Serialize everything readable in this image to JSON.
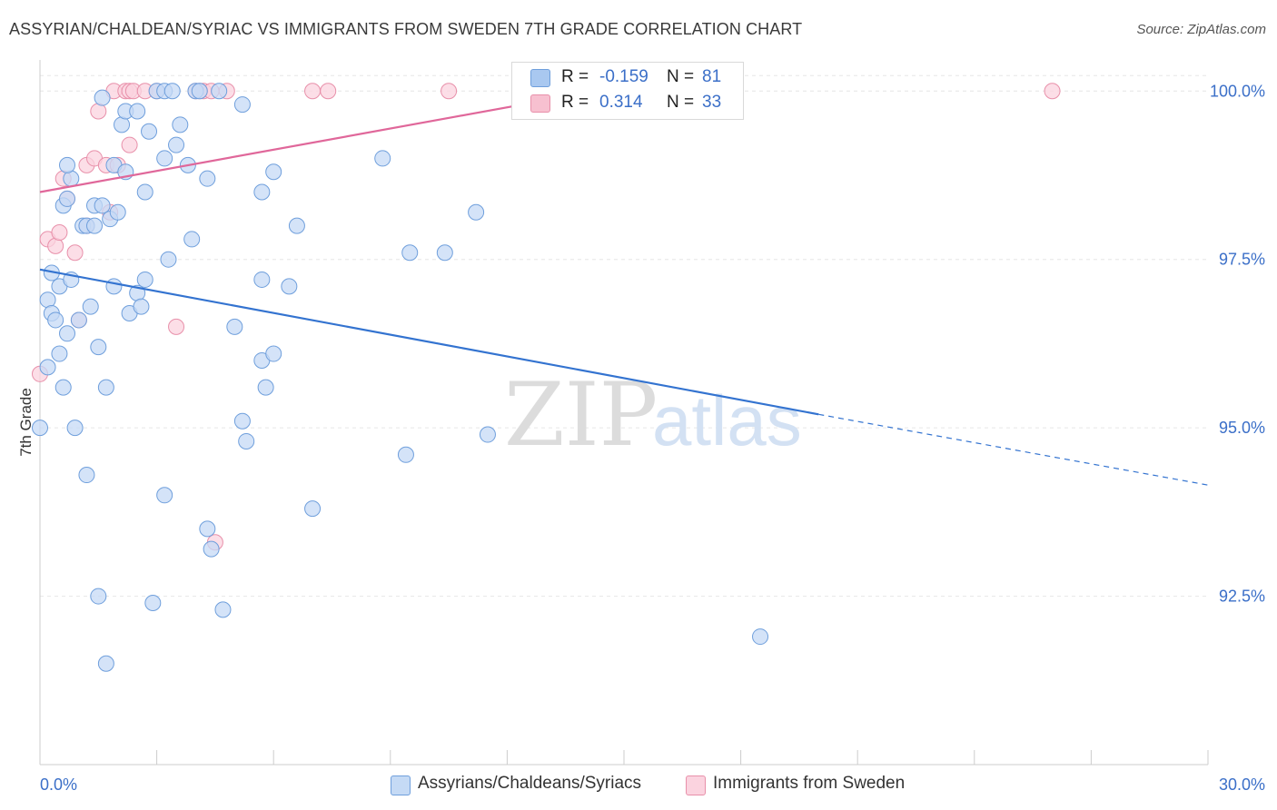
{
  "title": "ASSYRIAN/CHALDEAN/SYRIAC VS IMMIGRANTS FROM SWEDEN 7TH GRADE CORRELATION CHART",
  "source": "Source: ZipAtlas.com",
  "watermark": {
    "zip": "ZIP",
    "atlas": "atlas"
  },
  "legend": {
    "rows": [
      {
        "r_label": "R =",
        "r_value": "-0.159",
        "n_label": "N =",
        "n_value": "81",
        "color": "#a9c8f0",
        "border": "#6f9fdc"
      },
      {
        "r_label": "R =",
        "r_value": "0.314",
        "n_label": "N =",
        "n_value": "33",
        "color": "#f7c0d0",
        "border": "#e890aa"
      }
    ]
  },
  "bottom_legend": [
    {
      "label": "Assyrians/Chaldeans/Syriacs",
      "color": "#c5daf5",
      "border": "#6f9fdc"
    },
    {
      "label": "Immigrants from Sweden",
      "color": "#fbd3df",
      "border": "#e890aa"
    }
  ],
  "chart_data": {
    "type": "scatter",
    "title": "ASSYRIAN/CHALDEAN/SYRIAC VS IMMIGRANTS FROM SWEDEN 7TH GRADE CORRELATION CHART",
    "xlabel": "",
    "ylabel": "7th Grade",
    "xlim": [
      0,
      30
    ],
    "ylim": [
      90.0,
      100.3
    ],
    "x_tick_labels": [
      "0.0%",
      "30.0%"
    ],
    "y_ticks": [
      92.5,
      95.0,
      97.5,
      100.0
    ],
    "y_tick_labels": [
      "92.5%",
      "95.0%",
      "97.5%",
      "100.0%"
    ],
    "grid": true,
    "series": [
      {
        "name": "Assyrians/Chaldeans/Syriacs",
        "color": "#6f9fdc",
        "fill": "#c5daf5",
        "points": [
          [
            0.0,
            95.0
          ],
          [
            0.2,
            96.9
          ],
          [
            0.3,
            96.7
          ],
          [
            0.5,
            97.1
          ],
          [
            0.5,
            96.1
          ],
          [
            0.6,
            95.6
          ],
          [
            0.6,
            98.3
          ],
          [
            0.7,
            98.4
          ],
          [
            0.8,
            98.7
          ],
          [
            0.7,
            98.9
          ],
          [
            0.7,
            96.4
          ],
          [
            0.8,
            97.2
          ],
          [
            0.9,
            95.0
          ],
          [
            1.0,
            96.6
          ],
          [
            1.1,
            98.0
          ],
          [
            1.2,
            98.0
          ],
          [
            1.2,
            94.3
          ],
          [
            1.3,
            96.8
          ],
          [
            1.4,
            98.3
          ],
          [
            1.5,
            96.2
          ],
          [
            1.5,
            92.5
          ],
          [
            1.6,
            98.3
          ],
          [
            1.6,
            99.9
          ],
          [
            1.7,
            95.6
          ],
          [
            1.7,
            91.5
          ],
          [
            1.8,
            98.1
          ],
          [
            1.9,
            97.1
          ],
          [
            1.9,
            98.9
          ],
          [
            2.0,
            98.2
          ],
          [
            2.1,
            99.5
          ],
          [
            2.2,
            98.8
          ],
          [
            2.2,
            99.7
          ],
          [
            2.3,
            96.7
          ],
          [
            2.5,
            97.0
          ],
          [
            2.5,
            99.7
          ],
          [
            2.6,
            96.8
          ],
          [
            2.7,
            98.5
          ],
          [
            2.7,
            97.2
          ],
          [
            2.8,
            99.4
          ],
          [
            2.9,
            92.4
          ],
          [
            3.0,
            100.0
          ],
          [
            3.2,
            100.0
          ],
          [
            3.2,
            99.0
          ],
          [
            3.2,
            94.0
          ],
          [
            3.3,
            97.5
          ],
          [
            3.4,
            100.0
          ],
          [
            3.5,
            99.2
          ],
          [
            3.6,
            99.5
          ],
          [
            3.8,
            98.9
          ],
          [
            3.9,
            97.8
          ],
          [
            4.0,
            100.0
          ],
          [
            4.1,
            100.0
          ],
          [
            4.3,
            98.7
          ],
          [
            4.3,
            93.5
          ],
          [
            4.4,
            93.2
          ],
          [
            4.6,
            100.0
          ],
          [
            4.7,
            92.3
          ],
          [
            5.0,
            96.5
          ],
          [
            5.2,
            95.1
          ],
          [
            5.2,
            99.8
          ],
          [
            5.3,
            94.8
          ],
          [
            5.7,
            97.2
          ],
          [
            5.7,
            96.0
          ],
          [
            5.7,
            98.5
          ],
          [
            5.8,
            95.6
          ],
          [
            6.0,
            96.1
          ],
          [
            6.0,
            98.8
          ],
          [
            6.4,
            97.1
          ],
          [
            6.6,
            98.0
          ],
          [
            7.0,
            93.8
          ],
          [
            8.8,
            99.0
          ],
          [
            9.4,
            94.6
          ],
          [
            9.5,
            97.6
          ],
          [
            10.4,
            97.6
          ],
          [
            11.2,
            98.2
          ],
          [
            11.5,
            94.9
          ],
          [
            18.5,
            91.9
          ],
          [
            0.3,
            97.3
          ],
          [
            0.4,
            96.6
          ],
          [
            0.2,
            95.9
          ],
          [
            1.4,
            98.0
          ]
        ],
        "trend": {
          "x_start": 0,
          "y_start": 97.35,
          "x_solid_end": 20.0,
          "y_solid_end": 95.2,
          "x_end": 30.0,
          "y_end": 94.15
        }
      },
      {
        "name": "Immigrants from Sweden",
        "color": "#e890aa",
        "fill": "#fbd3df",
        "points": [
          [
            0.0,
            95.8
          ],
          [
            0.2,
            97.8
          ],
          [
            0.4,
            97.7
          ],
          [
            0.5,
            97.9
          ],
          [
            0.6,
            98.7
          ],
          [
            0.7,
            98.4
          ],
          [
            0.9,
            97.6
          ],
          [
            1.0,
            96.6
          ],
          [
            1.2,
            98.0
          ],
          [
            1.2,
            98.9
          ],
          [
            1.4,
            99.0
          ],
          [
            1.5,
            99.7
          ],
          [
            1.7,
            98.9
          ],
          [
            1.8,
            98.2
          ],
          [
            1.9,
            100.0
          ],
          [
            2.0,
            98.9
          ],
          [
            2.2,
            100.0
          ],
          [
            2.3,
            100.0
          ],
          [
            2.3,
            99.2
          ],
          [
            2.4,
            100.0
          ],
          [
            2.7,
            100.0
          ],
          [
            3.0,
            100.0
          ],
          [
            3.5,
            96.5
          ],
          [
            4.0,
            100.0
          ],
          [
            4.2,
            100.0
          ],
          [
            4.4,
            100.0
          ],
          [
            4.5,
            93.3
          ],
          [
            4.8,
            100.0
          ],
          [
            7.0,
            100.0
          ],
          [
            7.4,
            100.0
          ],
          [
            10.5,
            100.0
          ],
          [
            26.0,
            100.0
          ],
          [
            4.1,
            100.0
          ]
        ],
        "trend": {
          "x_start": 0,
          "y_start": 98.5,
          "x_solid_end": 14.5,
          "y_solid_end": 100.02,
          "x_end": 14.5,
          "y_end": 100.02
        }
      }
    ]
  }
}
